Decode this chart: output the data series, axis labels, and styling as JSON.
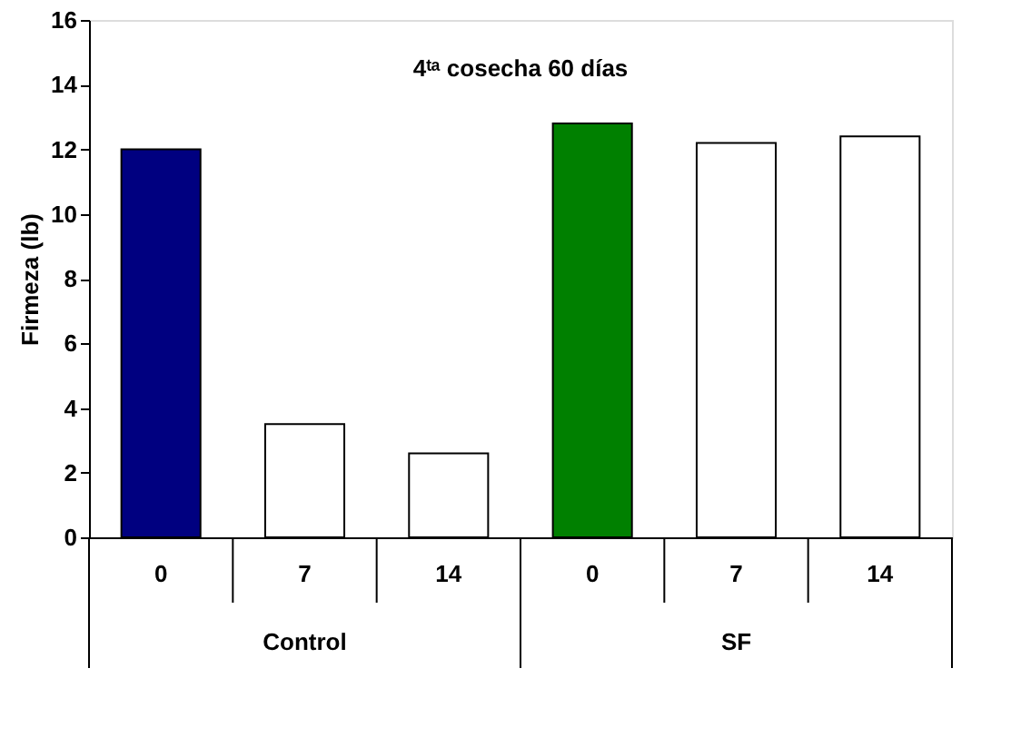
{
  "chart_data": {
    "type": "bar",
    "title": "4ᵗᵃ cosecha  60 días",
    "ylabel": "Firmeza (lb)",
    "categories": [
      "0",
      "7",
      "14",
      "0",
      "7",
      "14"
    ],
    "values": [
      12.0,
      3.5,
      2.6,
      12.8,
      12.2,
      12.4
    ],
    "colors": [
      "#000080",
      "#ffffff",
      "#ffffff",
      "#008000",
      "#ffffff",
      "#ffffff"
    ],
    "annotations": [
      "Control",
      "SF"
    ],
    "ylim": [
      0,
      16
    ],
    "yticks": [
      0,
      2,
      4,
      6,
      8,
      10,
      12,
      14,
      16
    ],
    "grid": false
  }
}
